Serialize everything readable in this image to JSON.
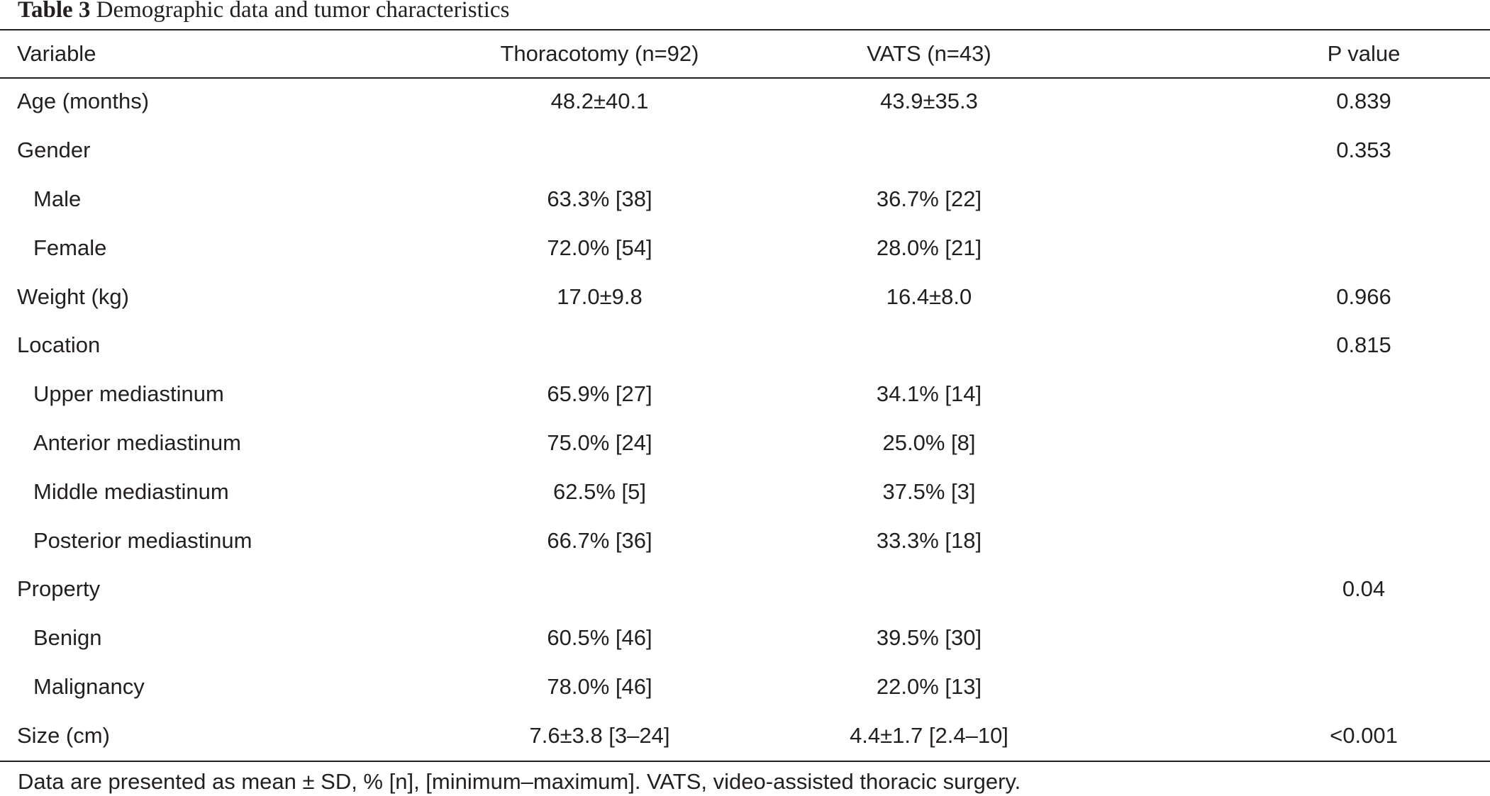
{
  "caption": {
    "label": "Table 3",
    "text": "Demographic data and tumor characteristics"
  },
  "columns": [
    "Variable",
    "Thoracotomy (n=92)",
    "VATS (n=43)",
    "P value"
  ],
  "rows": [
    {
      "variable": "Age (months)",
      "thoracotomy": "48.2±40.1",
      "vats": "43.9±35.3",
      "p_value": "0.839",
      "indent": false
    },
    {
      "variable": "Gender",
      "thoracotomy": "",
      "vats": "",
      "p_value": "0.353",
      "indent": false
    },
    {
      "variable": "Male",
      "thoracotomy": "63.3% [38]",
      "vats": "36.7% [22]",
      "p_value": "",
      "indent": true
    },
    {
      "variable": "Female",
      "thoracotomy": "72.0% [54]",
      "vats": "28.0% [21]",
      "p_value": "",
      "indent": true
    },
    {
      "variable": "Weight (kg)",
      "thoracotomy": "17.0±9.8",
      "vats": "16.4±8.0",
      "p_value": "0.966",
      "indent": false
    },
    {
      "variable": "Location",
      "thoracotomy": "",
      "vats": "",
      "p_value": "0.815",
      "indent": false
    },
    {
      "variable": "Upper mediastinum",
      "thoracotomy": "65.9% [27]",
      "vats": "34.1% [14]",
      "p_value": "",
      "indent": true
    },
    {
      "variable": "Anterior mediastinum",
      "thoracotomy": "75.0% [24]",
      "vats": "25.0% [8]",
      "p_value": "",
      "indent": true
    },
    {
      "variable": "Middle mediastinum",
      "thoracotomy": "62.5% [5]",
      "vats": "37.5% [3]",
      "p_value": "",
      "indent": true
    },
    {
      "variable": "Posterior mediastinum",
      "thoracotomy": "66.7% [36]",
      "vats": "33.3% [18]",
      "p_value": "",
      "indent": true
    },
    {
      "variable": "Property",
      "thoracotomy": "",
      "vats": "",
      "p_value": "0.04",
      "indent": false
    },
    {
      "variable": "Benign",
      "thoracotomy": "60.5% [46]",
      "vats": "39.5% [30]",
      "p_value": "",
      "indent": true
    },
    {
      "variable": "Malignancy",
      "thoracotomy": "78.0% [46]",
      "vats": "22.0% [13]",
      "p_value": "",
      "indent": true
    },
    {
      "variable": "Size (cm)",
      "thoracotomy": "7.6±3.8 [3–24]",
      "vats": "4.4±1.7 [2.4–10]",
      "p_value": "<0.001",
      "indent": false
    }
  ],
  "footnote": "Data are presented as mean ± SD, % [n], [minimum–maximum]. VATS, video-assisted thoracic surgery."
}
